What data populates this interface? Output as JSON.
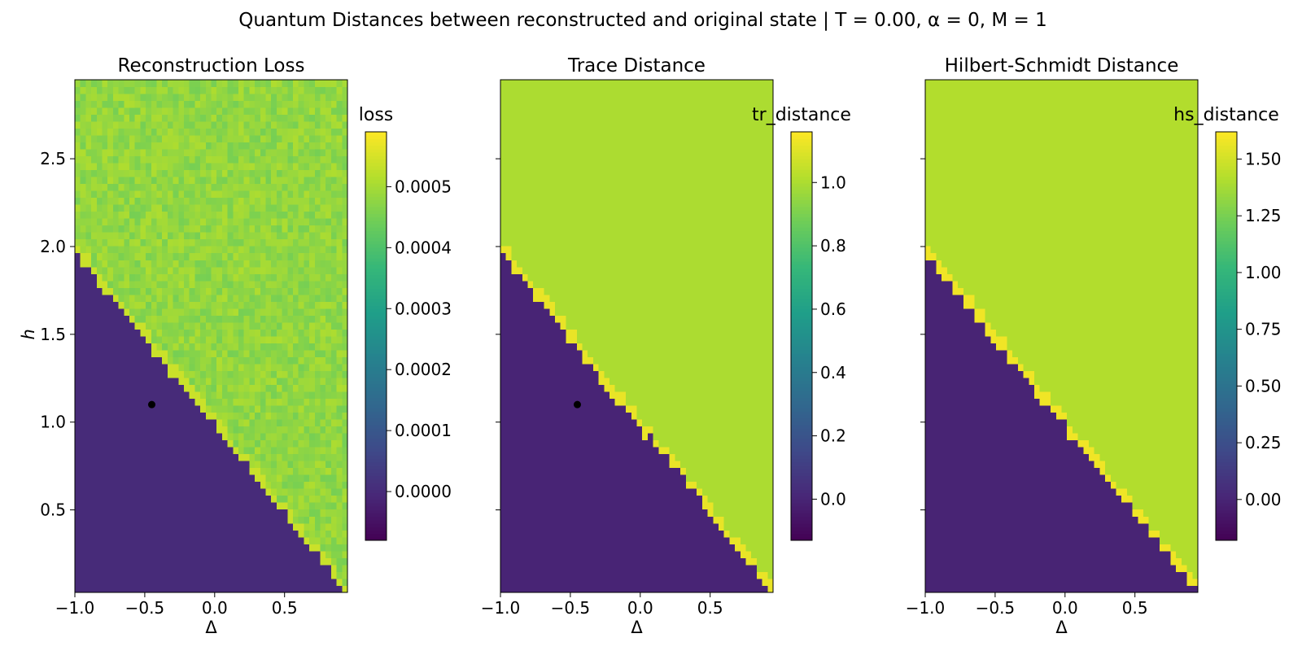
{
  "figure": {
    "suptitle": "Quantum Distances between reconstructed and original state | T = 0.00, α = 0, M = 1"
  },
  "chart_data": [
    {
      "type": "heatmap",
      "title": "Reconstruction Loss",
      "xlabel": "Δ",
      "ylabel": "h",
      "xlim": [
        -1.0,
        0.95
      ],
      "ylim": [
        0.03,
        2.95
      ],
      "xticks": [
        "−1.0",
        "−0.5",
        "0.0",
        "0.5"
      ],
      "yticks": [
        "0.5",
        "1.0",
        "1.5",
        "2.0",
        "2.5"
      ],
      "grid_cols": 50,
      "grid_rows": 74,
      "boundary": "h ≈ 1 − Δ",
      "low_region_value": 0.0,
      "high_region_value": 0.00048,
      "high_region_noise": 3e-05,
      "marker": {
        "x": -0.45,
        "y": 1.1
      },
      "colorbar": {
        "label": "loss",
        "min": -8e-05,
        "max": 0.00059,
        "ticks": [
          0.0,
          0.0001,
          0.0002,
          0.0003,
          0.0004,
          0.0005
        ],
        "tick_labels": [
          "0.0000",
          "0.0001",
          "0.0002",
          "0.0003",
          "0.0004",
          "0.0005"
        ]
      }
    },
    {
      "type": "heatmap",
      "title": "Trace Distance",
      "xlabel": "Δ",
      "ylabel": "",
      "xlim": [
        -1.0,
        0.95
      ],
      "ylim": [
        0.03,
        2.95
      ],
      "xticks": [
        "−1.0",
        "−0.5",
        "0.0",
        "0.5"
      ],
      "yticks": [],
      "grid_cols": 50,
      "grid_rows": 74,
      "boundary": "h ≈ 1 − Δ",
      "low_region_value": 0.0,
      "high_region_value": 1.0,
      "high_region_noise": 0.0,
      "marker": {
        "x": -0.45,
        "y": 1.1
      },
      "colorbar": {
        "label": "tr_distance",
        "min": -0.13,
        "max": 1.16,
        "ticks": [
          0.0,
          0.2,
          0.4,
          0.6,
          0.8,
          1.0
        ],
        "tick_labels": [
          "0.0",
          "0.2",
          "0.4",
          "0.6",
          "0.8",
          "1.0"
        ]
      }
    },
    {
      "type": "heatmap",
      "title": "Hilbert-Schmidt Distance",
      "xlabel": "Δ",
      "ylabel": "",
      "xlim": [
        -1.0,
        0.95
      ],
      "ylim": [
        0.03,
        2.95
      ],
      "xticks": [
        "−1.0",
        "−0.5",
        "0.0",
        "0.5"
      ],
      "yticks": [],
      "grid_cols": 50,
      "grid_rows": 74,
      "boundary": "h ≈ 1 − Δ",
      "low_region_value": 0.0,
      "high_region_value": 1.414,
      "high_region_noise": 0.0,
      "marker": null,
      "colorbar": {
        "label": "hs_distance",
        "min": -0.18,
        "max": 1.62,
        "ticks": [
          0.0,
          0.25,
          0.5,
          0.75,
          1.0,
          1.25,
          1.5
        ],
        "tick_labels": [
          "0.00",
          "0.25",
          "0.50",
          "0.75",
          "1.00",
          "1.25",
          "1.50"
        ]
      }
    }
  ]
}
